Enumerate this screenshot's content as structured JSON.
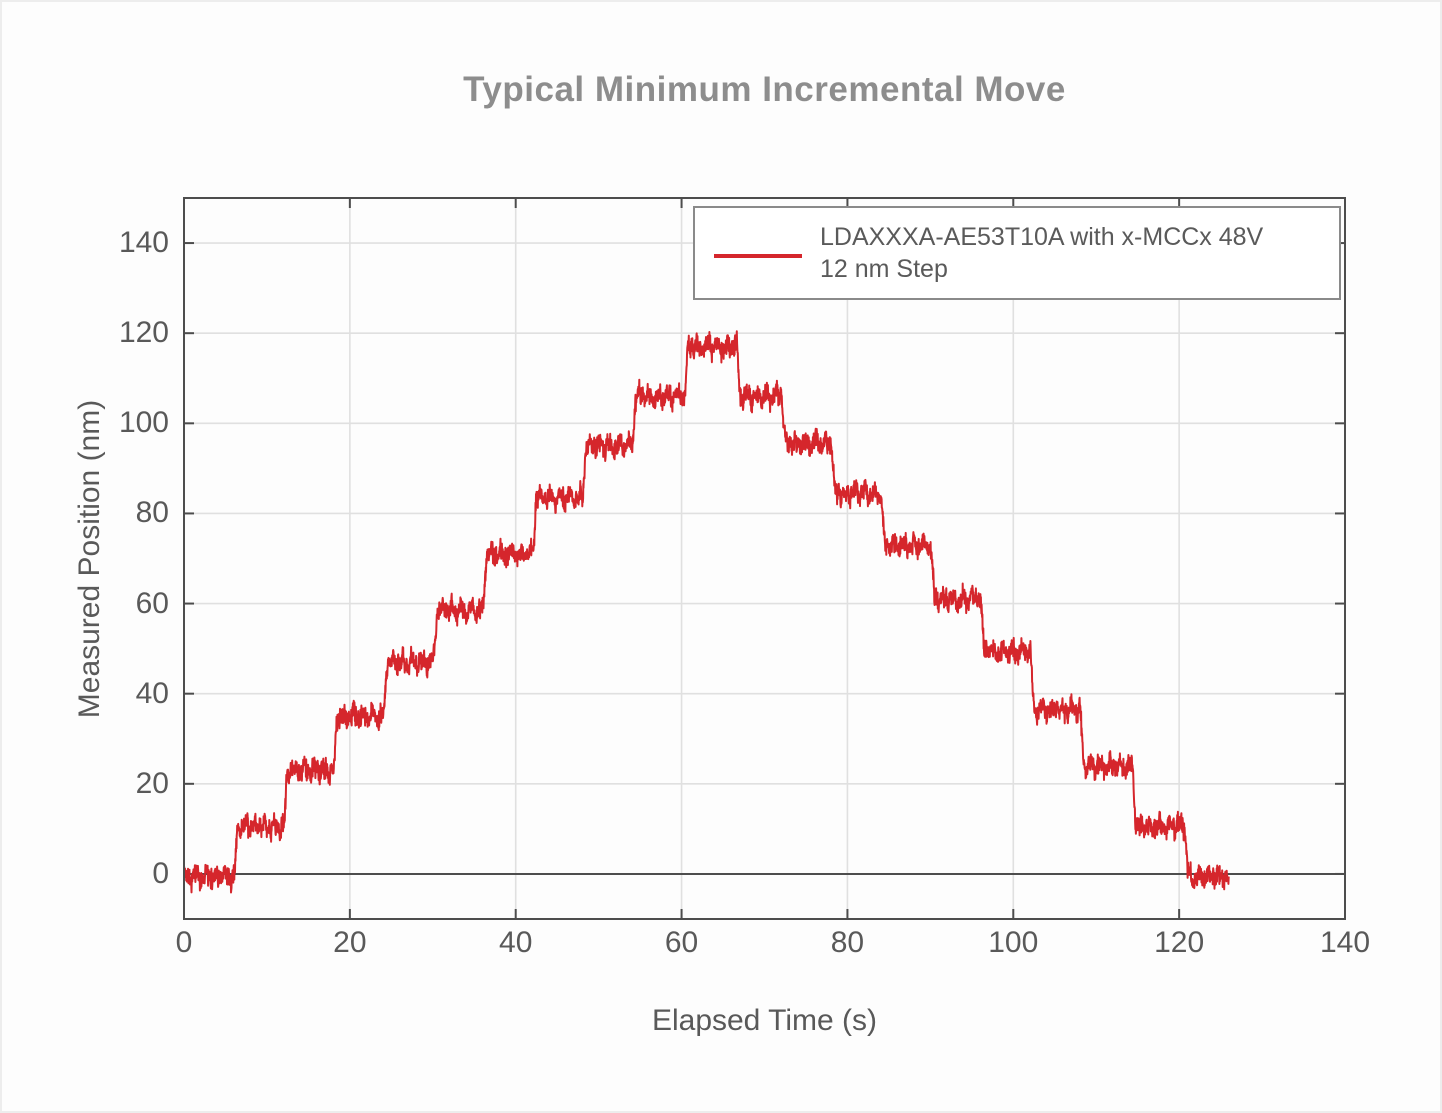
{
  "figure": {
    "background": "#fdfdfd",
    "border_color": "#ededed"
  },
  "chart_data": {
    "type": "line",
    "title": "Typical Minimum Incremental Move",
    "xlabel": "Elapsed Time (s)",
    "ylabel": "Measured Position (nm)",
    "xlim": [
      0,
      140
    ],
    "ylim": [
      -10,
      150
    ],
    "xticks": [
      0,
      20,
      40,
      60,
      80,
      100,
      120,
      140
    ],
    "yticks": [
      0,
      20,
      40,
      60,
      80,
      100,
      120,
      140
    ],
    "grid": true,
    "zero_line": true,
    "legend": {
      "position": "top-right",
      "line1": "LDAXXXA-AE53T10A with x-MCCx 48V",
      "line2": "12 nm Step"
    },
    "colors": {
      "series": "#d5262c",
      "axis": "#4d4d4d",
      "grid": "#e0e0e0",
      "text": "#595959",
      "title": "#8d8d8d",
      "legend_border": "#8a8a8a"
    },
    "series": [
      {
        "name": "LDAXXXA-AE53T10A with x-MCCx 48V 12 nm Step",
        "color": "#d5262c",
        "commanded_step_nm": 12,
        "step_duration_s": 6,
        "noise_band_nm": 3,
        "peak_nm": 117,
        "plateaus": [
          {
            "t0": 0,
            "t1": 6,
            "level": -0.5
          },
          {
            "t0": 6,
            "t1": 12,
            "level": 10.5
          },
          {
            "t0": 12,
            "t1": 18,
            "level": 23
          },
          {
            "t0": 18,
            "t1": 24,
            "level": 35
          },
          {
            "t0": 24,
            "t1": 30,
            "level": 47
          },
          {
            "t0": 30,
            "t1": 36,
            "level": 58.5
          },
          {
            "t0": 36,
            "t1": 42,
            "level": 71
          },
          {
            "t0": 42,
            "t1": 48,
            "level": 83.5
          },
          {
            "t0": 48,
            "t1": 54,
            "level": 95
          },
          {
            "t0": 54,
            "t1": 60.3,
            "level": 106
          },
          {
            "t0": 60.3,
            "t1": 66.6,
            "level": 117
          },
          {
            "t0": 66.6,
            "t1": 72,
            "level": 106
          },
          {
            "t0": 72,
            "t1": 78,
            "level": 95.5
          },
          {
            "t0": 78,
            "t1": 84,
            "level": 84.5
          },
          {
            "t0": 84,
            "t1": 90,
            "level": 73
          },
          {
            "t0": 90,
            "t1": 96,
            "level": 61
          },
          {
            "t0": 96,
            "t1": 102,
            "level": 49.5
          },
          {
            "t0": 102,
            "t1": 108,
            "level": 36.5
          },
          {
            "t0": 108,
            "t1": 114.3,
            "level": 24
          },
          {
            "t0": 114.3,
            "t1": 120.6,
            "level": 10.5
          },
          {
            "t0": 120.6,
            "t1": 126,
            "level": -0.5
          }
        ]
      }
    ]
  }
}
